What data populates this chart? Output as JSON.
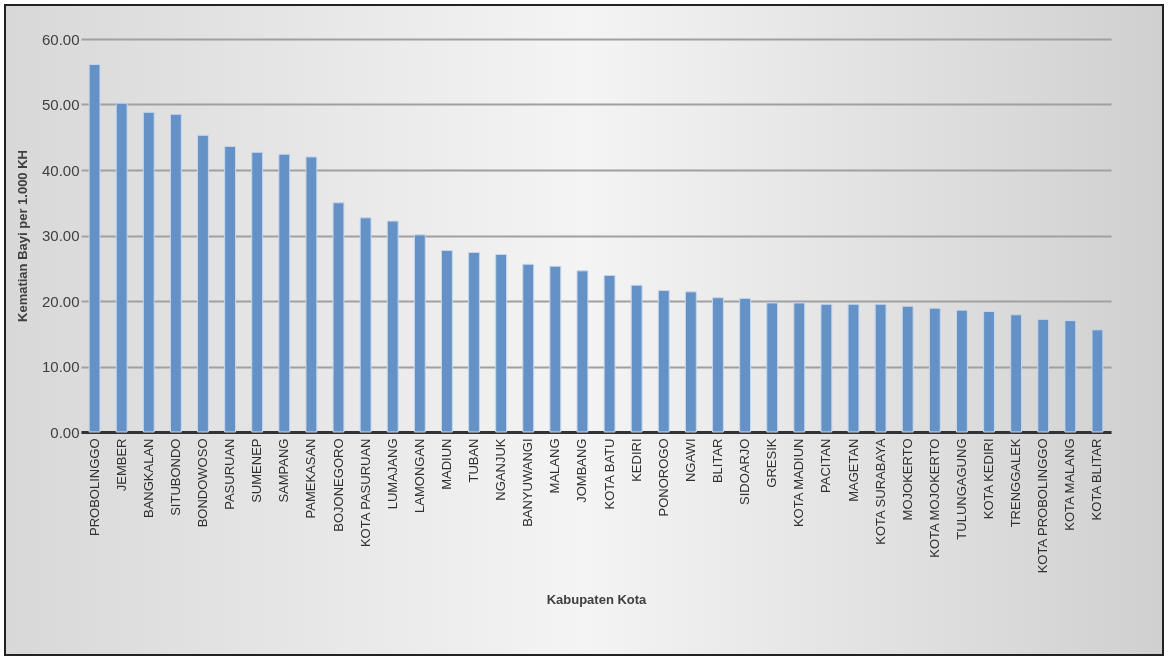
{
  "chart_data": {
    "type": "bar",
    "xlabel": "Kabupaten Kota",
    "ylabel": "Kematian Bayi  per 1.000 KH",
    "categories": [
      "PROBOLINGGO",
      "JEMBER",
      "BANGKALAN",
      "SITUBONDO",
      "BONDOWOSO",
      "PASURUAN",
      "SUMENEP",
      "SAMPANG",
      "PAMEKASAN",
      "BOJONEGORO",
      "KOTA PASURUAN",
      "LUMAJANG",
      "LAMONGAN",
      "MADIUN",
      "TUBAN",
      "NGANJUK",
      "BANYUWANGI",
      "MALANG",
      "JOMBANG",
      "KOTA BATU",
      "KEDIRI",
      "PONOROGO",
      "NGAWI",
      "BLITAR",
      "SIDOARJO",
      "GRESIK",
      "KOTA MADIUN",
      "PACITAN",
      "MAGETAN",
      "KOTA SURABAYA",
      "MOJOKERTO",
      "KOTA MOJOKERTO",
      "TULUNGAGUNG",
      "KOTA KEDIRI",
      "TRENGGALEK",
      "KOTA PROBOLINGGO",
      "KOTA MALANG",
      "KOTA BLITAR"
    ],
    "values": [
      56.1,
      50.2,
      48.8,
      48.5,
      45.3,
      43.6,
      42.7,
      42.4,
      42.0,
      35.0,
      32.7,
      32.2,
      30.1,
      27.7,
      27.4,
      27.1,
      25.6,
      25.3,
      24.6,
      23.9,
      22.4,
      21.6,
      21.4,
      20.5,
      20.4,
      19.7,
      19.7,
      19.5,
      19.5,
      19.5,
      19.2,
      18.9,
      18.6,
      18.4,
      17.9,
      17.2,
      17.0,
      15.6
    ],
    "color": "#6592c6",
    "ylim": [
      0,
      60
    ],
    "yticks": [
      {
        "value": 0,
        "label": "0.00"
      },
      {
        "value": 10,
        "label": "10.00"
      },
      {
        "value": 20,
        "label": "20.00"
      },
      {
        "value": 30,
        "label": "30.00"
      },
      {
        "value": 40,
        "label": "40.00"
      },
      {
        "value": 50,
        "label": "50.00"
      },
      {
        "value": 60,
        "label": "60.00"
      }
    ],
    "grid": "y"
  }
}
